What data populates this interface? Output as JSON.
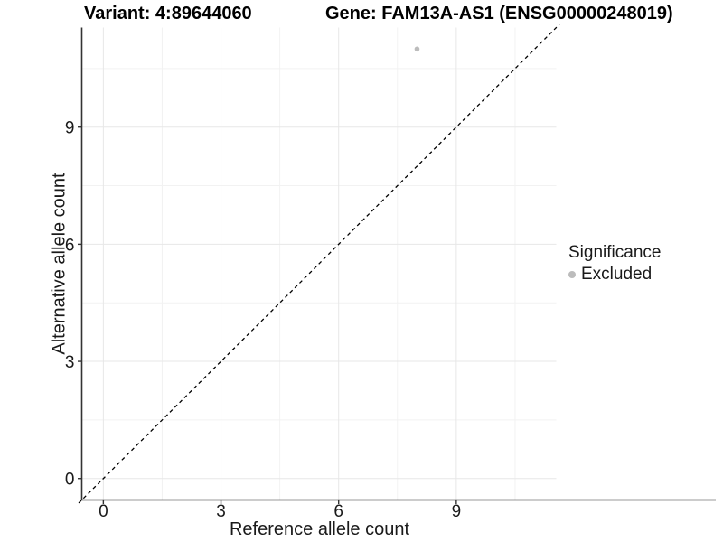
{
  "header": {
    "variant_title": "Variant: 4:89644060",
    "gene_title": "Gene: FAM13A-AS1 (ENSG00000248019)"
  },
  "chart_data": {
    "type": "scatter",
    "xlabel": "Reference allele count",
    "ylabel": "Alternative allele count",
    "xlim": [
      -0.55,
      11.55
    ],
    "ylim": [
      -0.55,
      11.55
    ],
    "x_major_ticks": [
      0,
      3,
      6,
      9
    ],
    "y_major_ticks": [
      0,
      3,
      6,
      9
    ],
    "x_minor_ticks": [
      1.5,
      4.5,
      7.5,
      10.5
    ],
    "y_minor_ticks": [
      1.5,
      4.5,
      7.5,
      10.5
    ],
    "grid": "major+minor",
    "series": [
      {
        "name": "Excluded",
        "color": "#bcbcbc",
        "points": [
          {
            "x": 8,
            "y": 11
          }
        ]
      }
    ],
    "reference_line": {
      "slope": 1,
      "intercept": 0,
      "style": "dashed",
      "color": "#000000"
    },
    "legend": {
      "title": "Significance",
      "position": "right",
      "items": [
        {
          "label": "Excluded",
          "color": "#bcbcbc"
        }
      ]
    },
    "colors": {
      "grid_major": "#e7e7e7",
      "grid_minor": "#f2f2f2",
      "axis_line": "#333333",
      "tick_label": "#1a1a1a",
      "point": "#bcbcbc"
    }
  }
}
